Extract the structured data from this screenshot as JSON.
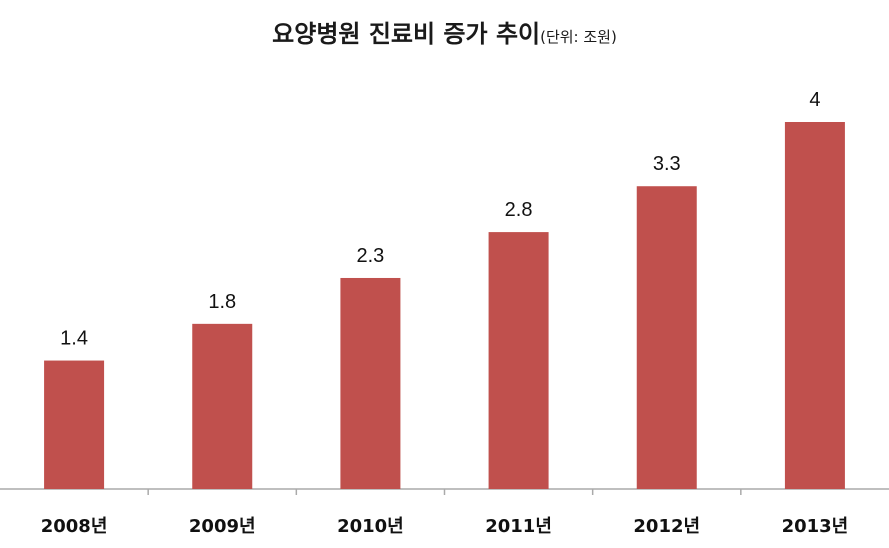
{
  "chart_data": {
    "type": "bar",
    "title": "요양병원 진료비 증가 추이",
    "unit_note": "(단위: 조원)",
    "categories": [
      "2008년",
      "2009년",
      "2010년",
      "2011년",
      "2012년",
      "2013년"
    ],
    "values": [
      1.4,
      1.8,
      2.3,
      2.8,
      3.3,
      4
    ],
    "value_labels": [
      "1.4",
      "1.8",
      "2.3",
      "2.8",
      "3.3",
      "4"
    ],
    "xlabel": "",
    "ylabel": "",
    "ylim": [
      0,
      4.2
    ],
    "grid": false,
    "y_axis_visible": false,
    "colors": {
      "bar": "#C0504D",
      "axis": "#aaaaaa",
      "text": "#111111"
    }
  }
}
